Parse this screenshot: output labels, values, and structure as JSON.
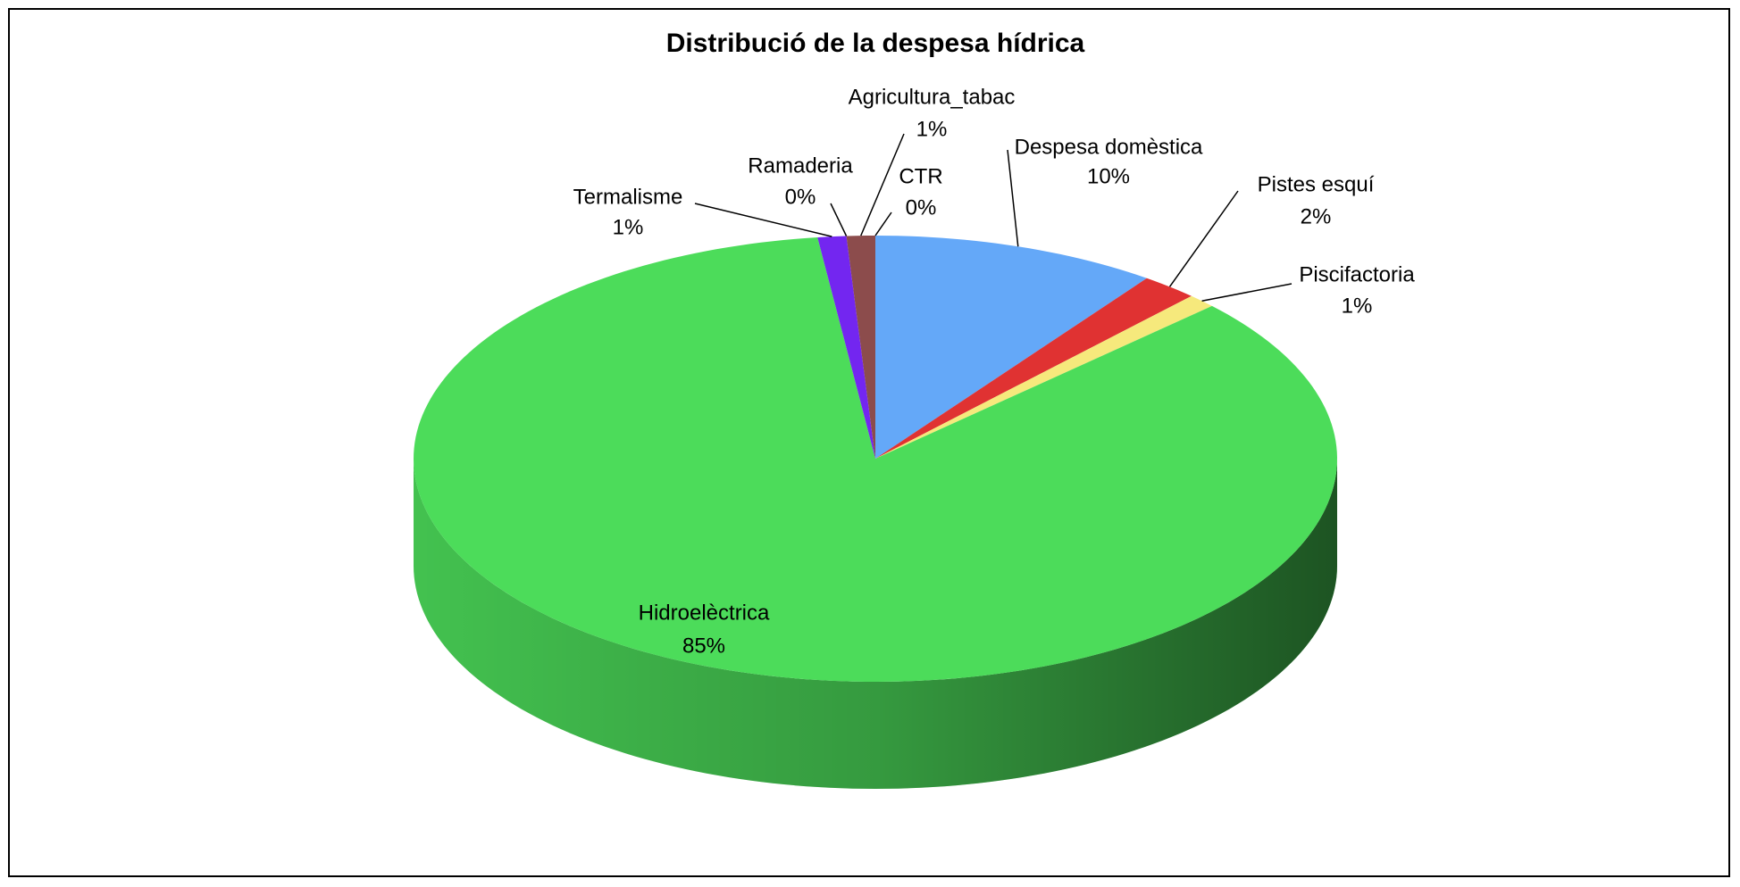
{
  "chart_data": {
    "type": "pie3d",
    "title": "Distribució de la despesa hídrica",
    "categories": [
      "Despesa domèstica",
      "Pistes esquí",
      "Piscifactoria",
      "Hidroelèctrica",
      "Termalisme",
      "Ramaderia",
      "Agricultura_tabac",
      "CTR"
    ],
    "values": [
      10,
      2,
      1,
      85,
      1,
      0,
      1,
      0
    ],
    "value_labels": [
      "10%",
      "2%",
      "1%",
      "85%",
      "1%",
      "0%",
      "1%",
      "0%"
    ],
    "colors": [
      "#64a8f8",
      "#e03232",
      "#f6e97c",
      "#4cdc5a",
      "#7326f0",
      "#f08a6e",
      "#8c4c4c",
      "#9a9a9a"
    ]
  }
}
